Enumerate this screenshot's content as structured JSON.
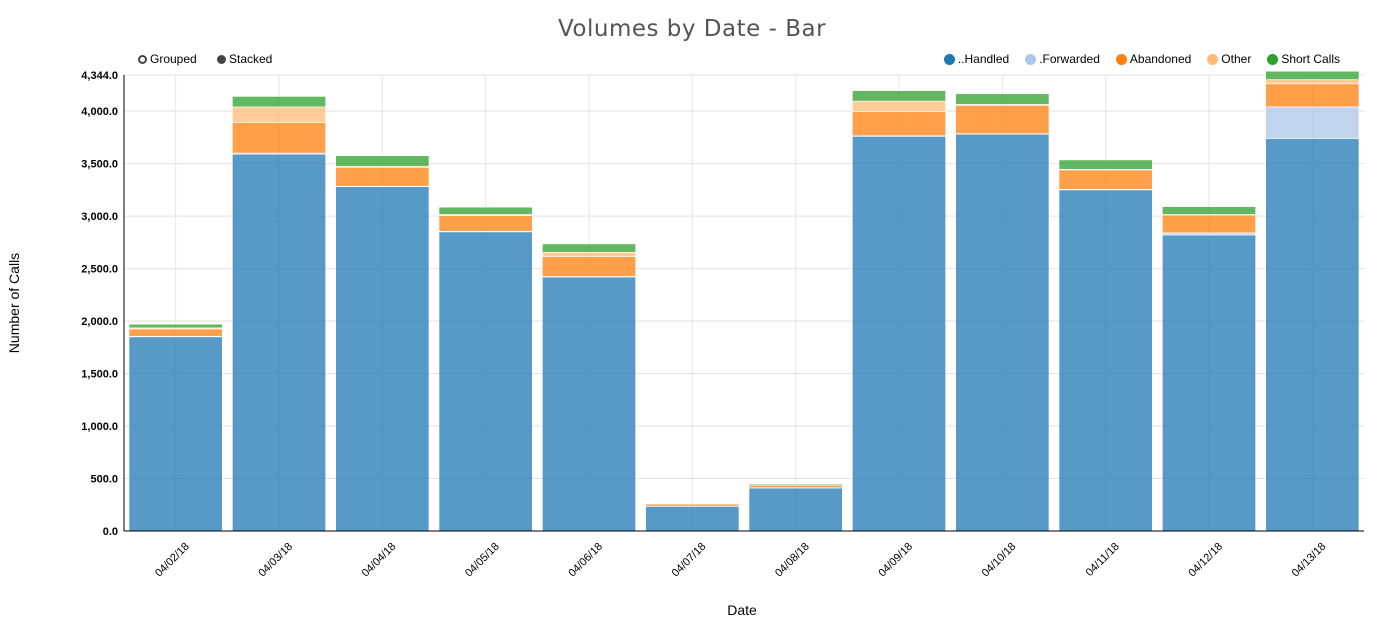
{
  "chart_data": {
    "type": "bar",
    "mode": "stacked",
    "title": "Volumes by Date - Bar",
    "xlabel": "Date",
    "ylabel": "Number of Calls",
    "ylim": [
      0,
      4344
    ],
    "ymax_label": "4,344.0",
    "yticks": [
      0,
      500,
      1000,
      1500,
      2000,
      2500,
      3000,
      3500,
      4000
    ],
    "ytick_labels": [
      "0.0",
      "500.0",
      "1,000.0",
      "1,500.0",
      "2,000.0",
      "2,500.0",
      "3,000.0",
      "3,500.0",
      "4,000.0"
    ],
    "grid": true,
    "legend_position": "top-right",
    "categories": [
      "04/02/18",
      "04/03/18",
      "04/04/18",
      "04/05/18",
      "04/06/18",
      "04/07/18",
      "04/08/18",
      "04/09/18",
      "04/10/18",
      "04/11/18",
      "04/12/18",
      "04/13/18"
    ],
    "series": [
      {
        "name": "..Handled",
        "color": "#1f77b4",
        "values": [
          1850,
          3590,
          3280,
          2850,
          2420,
          235,
          410,
          3760,
          3780,
          3250,
          2820,
          3740
        ]
      },
      {
        "name": ".Forwarded",
        "color": "#aec7e8",
        "values": [
          5,
          10,
          5,
          5,
          5,
          2,
          2,
          5,
          5,
          5,
          20,
          300
        ]
      },
      {
        "name": "Abandoned",
        "color": "#ff7f0e",
        "values": [
          70,
          290,
          180,
          150,
          190,
          20,
          25,
          230,
          270,
          185,
          170,
          220
        ]
      },
      {
        "name": "Other",
        "color": "#ffbb78",
        "values": [
          10,
          150,
          10,
          10,
          40,
          3,
          3,
          100,
          10,
          5,
          5,
          40
        ]
      },
      {
        "name": "Short Calls",
        "color": "#2ca02c",
        "values": [
          35,
          100,
          100,
          70,
          80,
          5,
          10,
          100,
          100,
          90,
          75,
          80
        ]
      }
    ]
  },
  "controls": {
    "grouped_label": "Grouped",
    "stacked_label": "Stacked"
  }
}
